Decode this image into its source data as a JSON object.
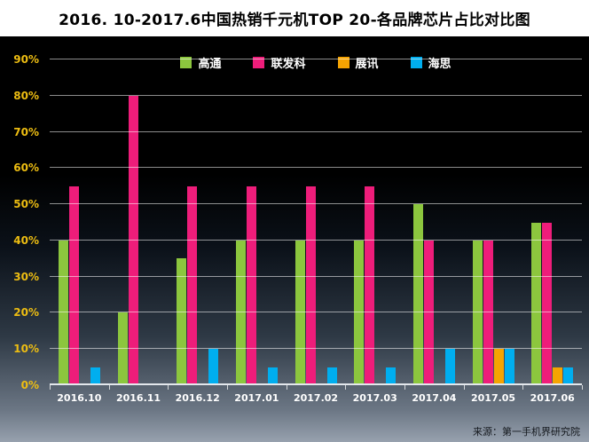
{
  "title": "2016. 10-2017.6中国热销千元机TOP 20-各品牌芯片占比对比图",
  "source": "来源：第一手机界研究院",
  "chart_data": {
    "type": "bar",
    "title": "2016. 10-2017.6中国热销千元机TOP 20-各品牌芯片占比对比图",
    "categories": [
      "2016.10",
      "2016.11",
      "2016.12",
      "2017.01",
      "2017.02",
      "2017.03",
      "2017.04",
      "2017.05",
      "2017.06"
    ],
    "series": [
      {
        "name": "高通",
        "color": "#8CC63E",
        "values": [
          40,
          20,
          35,
          40,
          40,
          40,
          50,
          40,
          45
        ]
      },
      {
        "name": "联发科",
        "color": "#EE1D7A",
        "values": [
          55,
          80,
          55,
          55,
          55,
          55,
          40,
          40,
          45
        ]
      },
      {
        "name": "展讯",
        "color": "#F5A402",
        "values": [
          0,
          0,
          0,
          0,
          0,
          0,
          0,
          10,
          5
        ]
      },
      {
        "name": "海思",
        "color": "#00AEEF",
        "values": [
          5,
          0,
          10,
          5,
          5,
          5,
          10,
          10,
          5
        ]
      }
    ],
    "xlabel": "",
    "ylabel": "",
    "ylim": [
      0,
      90
    ],
    "ytick_step": 10,
    "ytick_format": "percent",
    "grid": true,
    "legend_position": "top-center",
    "background": "black-to-slate-gradient",
    "y_tick_label_color": "#edbd12",
    "x_tick_label_color": "#ffffff"
  }
}
